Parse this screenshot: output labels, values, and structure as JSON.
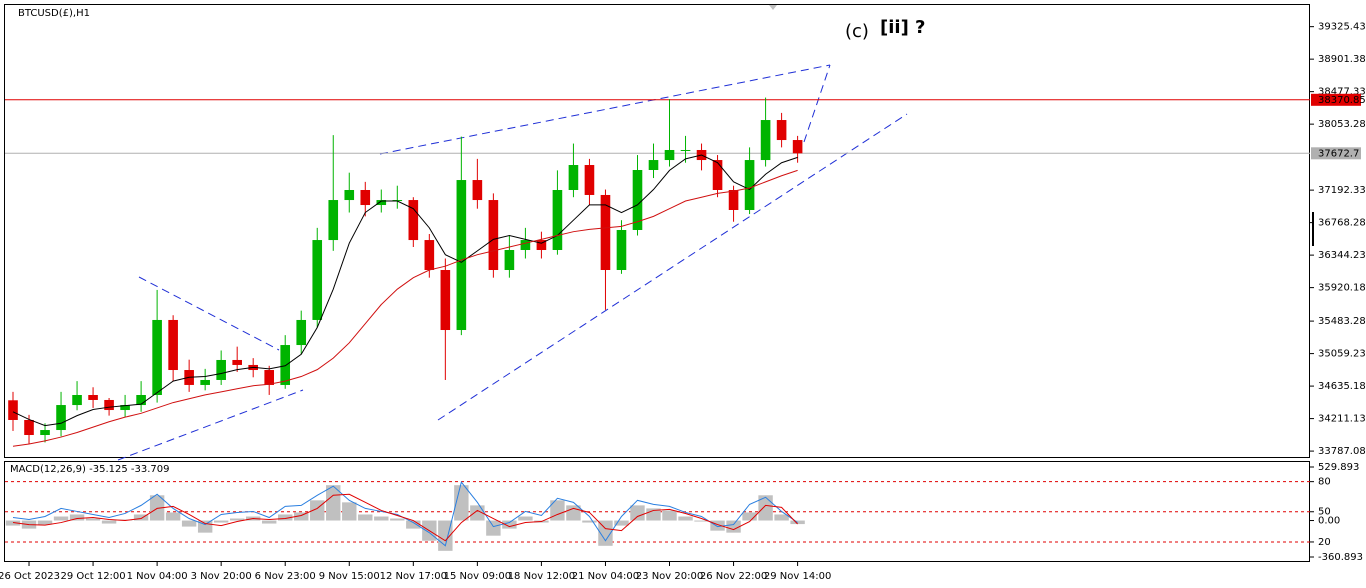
{
  "chart_data": [
    {
      "type": "candlestick",
      "title": "BTCUSD(£),H1",
      "open": [
        34450,
        34193,
        33997,
        34062,
        34388,
        34519,
        34454,
        34323,
        34388,
        34519,
        35498,
        34845,
        34650,
        34715,
        34976,
        34911,
        34845,
        34650,
        35171,
        35498,
        36541,
        37063,
        37194,
        36998,
        37063,
        37063,
        36541,
        36150,
        35367,
        37324,
        37063,
        36150,
        36411,
        36541,
        36411,
        37194,
        37520,
        37129,
        36150,
        36672,
        37455,
        37585,
        37716,
        37716,
        37585,
        37194,
        36933,
        37585,
        38107,
        37846
      ],
      "high": [
        34560,
        34260,
        34150,
        34560,
        34700,
        34620,
        34480,
        34520,
        34700,
        35890,
        35560,
        34980,
        34860,
        35100,
        35150,
        35000,
        34900,
        35300,
        35620,
        36700,
        37910,
        37420,
        37300,
        37200,
        37250,
        37100,
        36620,
        36300,
        37890,
        37600,
        37150,
        36600,
        36700,
        36650,
        37450,
        37800,
        37600,
        37200,
        36800,
        37650,
        37800,
        38380,
        37900,
        37800,
        37650,
        37250,
        37750,
        38400,
        38200,
        37900
      ],
      "low": [
        34050,
        33880,
        33900,
        33980,
        34320,
        34350,
        34250,
        34230,
        34300,
        34420,
        34700,
        34560,
        34580,
        34650,
        34820,
        34750,
        34520,
        34600,
        35050,
        35400,
        36400,
        36900,
        36850,
        36900,
        36950,
        36450,
        36050,
        34715,
        35300,
        36950,
        36050,
        36050,
        36300,
        36300,
        36350,
        37100,
        37000,
        35630,
        36100,
        36600,
        37350,
        37500,
        37550,
        37450,
        37100,
        36780,
        36880,
        37500,
        37750,
        37550
      ],
      "close": [
        34193,
        33997,
        34062,
        34388,
        34519,
        34454,
        34323,
        34388,
        34519,
        35498,
        34845,
        34650,
        34715,
        34976,
        34911,
        34845,
        34650,
        35171,
        35498,
        36541,
        37063,
        37194,
        36998,
        37063,
        37063,
        36541,
        36150,
        35367,
        37324,
        37063,
        36150,
        36411,
        36541,
        36411,
        37194,
        37520,
        37129,
        36150,
        36672,
        37455,
        37585,
        37716,
        37716,
        37585,
        37194,
        36933,
        37585,
        38107,
        37846,
        37673
      ],
      "up_color": "#00b400",
      "down_color": "#e00000",
      "series": [
        {
          "color": "#000000",
          "values": [
            34300,
            34200,
            34120,
            34150,
            34250,
            34330,
            34360,
            34380,
            34400,
            34550,
            34700,
            34750,
            34760,
            34800,
            34850,
            34880,
            34860,
            34900,
            35050,
            35400,
            35900,
            36500,
            36900,
            37050,
            37050,
            36950,
            36700,
            36350,
            36250,
            36400,
            36550,
            36600,
            36550,
            36500,
            36600,
            36800,
            37000,
            37000,
            36900,
            37000,
            37200,
            37450,
            37600,
            37650,
            37550,
            37300,
            37200,
            37400,
            37550,
            37620
          ]
        },
        {
          "color": "#d01010",
          "values": [
            33850,
            33880,
            33920,
            33970,
            34030,
            34100,
            34170,
            34230,
            34280,
            34350,
            34420,
            34470,
            34520,
            34560,
            34600,
            34640,
            34660,
            34700,
            34760,
            34850,
            35000,
            35200,
            35450,
            35700,
            35900,
            36050,
            36150,
            36200,
            36280,
            36350,
            36400,
            36450,
            36500,
            36550,
            36600,
            36650,
            36680,
            36700,
            36720,
            36780,
            36850,
            36950,
            37050,
            37100,
            37150,
            37180,
            37220,
            37300,
            37380,
            37450
          ]
        }
      ],
      "levels": [
        {
          "value": 38370.85,
          "color": "#e00000"
        },
        {
          "value": 37672.7,
          "color": "#b0b0b0",
          "label_color": "#000000"
        }
      ],
      "annotations": [
        {
          "text": "(c)",
          "color": "#1f2fd6"
        },
        {
          "text": "[ii] ?",
          "color": "#138a13"
        }
      ],
      "ylim": [
        33710,
        39621
      ],
      "yticks": [
        39325.43,
        38901.38,
        38477.33,
        38053.28,
        37192.33,
        36768.28,
        36344.23,
        35920.18,
        35483.28,
        35059.23,
        34635.18,
        34211.13,
        33787.08
      ],
      "xlim": [
        -0.5,
        81
      ],
      "xticks": [
        {
          "value": 1,
          "label": "26 Oct 2023"
        },
        {
          "value": 5,
          "label": "29 Oct 12:00"
        },
        {
          "value": 9,
          "label": "1 Nov 04:00"
        },
        {
          "value": 13,
          "label": "3 Nov 20:00"
        },
        {
          "value": 17,
          "label": "6 Nov 23:00"
        },
        {
          "value": 21,
          "label": "9 Nov 15:00"
        },
        {
          "value": 25,
          "label": "12 Nov 17:00"
        },
        {
          "value": 29,
          "label": "15 Nov 09:00"
        },
        {
          "value": 33,
          "label": "18 Nov 12:00"
        },
        {
          "value": 37,
          "label": "21 Nov 04:00"
        },
        {
          "value": 41,
          "label": "23 Nov 20:00"
        },
        {
          "value": 45,
          "label": "26 Nov 22:00"
        },
        {
          "value": 49,
          "label": "29 Nov 14:00"
        }
      ]
    },
    {
      "type": "macd",
      "title": "MACD(12,26,9) -35.125 -33.709",
      "series": [
        {
          "type": "bar",
          "color": "#c0c0c0",
          "values": [
            -50,
            -80,
            -40,
            40,
            60,
            20,
            -30,
            10,
            60,
            250,
            80,
            -60,
            -120,
            -20,
            20,
            40,
            -30,
            60,
            80,
            200,
            350,
            180,
            60,
            40,
            20,
            -80,
            -200,
            -300,
            350,
            150,
            -150,
            -80,
            40,
            -20,
            200,
            150,
            -20,
            -250,
            -50,
            150,
            120,
            100,
            40,
            -10,
            -100,
            -120,
            80,
            250,
            60,
            -35
          ]
        },
        {
          "type": "line",
          "color": "#2a7fe0",
          "values": [
            30,
            10,
            40,
            120,
            90,
            60,
            30,
            70,
            150,
            260,
            120,
            20,
            -40,
            60,
            80,
            90,
            30,
            140,
            150,
            250,
            340,
            200,
            120,
            90,
            60,
            -20,
            -120,
            -250,
            380,
            180,
            -60,
            -20,
            90,
            50,
            220,
            180,
            40,
            -200,
            40,
            200,
            160,
            140,
            80,
            40,
            -60,
            -40,
            160,
            230,
            90,
            -20
          ]
        },
        {
          "type": "line",
          "color": "#e00000",
          "values": [
            -20,
            -40,
            -45,
            -20,
            20,
            30,
            10,
            0,
            20,
            120,
            140,
            60,
            -30,
            -50,
            -10,
            20,
            10,
            20,
            50,
            120,
            250,
            260,
            180,
            100,
            50,
            0,
            -100,
            -200,
            -20,
            100,
            20,
            -60,
            -20,
            -10,
            60,
            120,
            80,
            -80,
            -100,
            40,
            100,
            110,
            70,
            20,
            -40,
            -90,
            -10,
            150,
            130,
            -34
          ]
        }
      ],
      "levels": [
        385,
        87,
        -212
      ],
      "level_color": "#e00000",
      "ylim": [
        -360.893,
        529.893
      ],
      "yticks": [
        529.893,
        {
          "value": 385,
          "label": "80"
        },
        {
          "value": 87,
          "label": "50"
        },
        {
          "value": 0,
          "label": "0.00"
        },
        {
          "value": -212,
          "label": "20"
        },
        -360.893
      ]
    }
  ]
}
